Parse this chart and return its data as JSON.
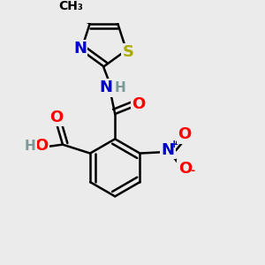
{
  "bg_color": "#ebebeb",
  "atom_colors": {
    "C": "#000000",
    "N": "#0000cc",
    "O": "#ff0000",
    "S": "#aaaa00",
    "H": "#7a9a9a"
  },
  "bond_color": "#000000",
  "bond_width": 1.8,
  "font_size": 13,
  "font_size_h": 11
}
